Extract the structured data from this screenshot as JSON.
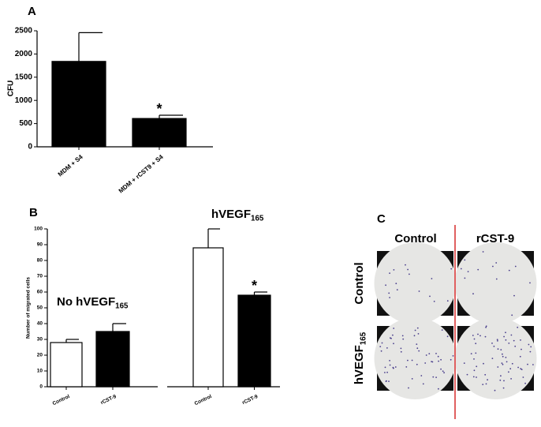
{
  "chart_data": [
    {
      "type": "bar",
      "panel": "A",
      "y_label": "CFU",
      "categories": [
        "MDM + S4",
        "MDM + rCST9 + S4"
      ],
      "values": [
        1840,
        610
      ],
      "errors": [
        620,
        70
      ],
      "color": "#000000",
      "ylim": [
        0,
        2500
      ],
      "yticks": [
        0,
        500,
        1000,
        1500,
        2000,
        2500
      ],
      "annotations": [
        {
          "text": "*",
          "category": 1
        }
      ]
    },
    {
      "type": "bar",
      "panel": "B",
      "y_label": "Number of migrated cells",
      "categories": [
        "Control",
        "rCST-9",
        "Control",
        "rCST-9"
      ],
      "values": [
        28,
        35,
        88,
        58
      ],
      "errors": [
        2,
        5,
        12,
        2
      ],
      "colors": [
        "#ffffff",
        "#000000",
        "#ffffff",
        "#000000"
      ],
      "ylim": [
        0,
        100
      ],
      "yticks": [
        0,
        10,
        20,
        30,
        40,
        50,
        60,
        70,
        80,
        90,
        100
      ],
      "groups": [
        {
          "text": "No hVEGF",
          "sub": "165"
        },
        {
          "text": "hVEGF",
          "sub": "165"
        }
      ],
      "annotations": [
        {
          "text": "*",
          "category": 3
        }
      ]
    },
    {
      "type": "image-grid",
      "panel": "C",
      "columns": [
        "Control",
        "rCST-9"
      ],
      "rows": [
        {
          "text": "Control"
        },
        {
          "text": "hVEGF",
          "sub": "165"
        }
      ]
    }
  ]
}
